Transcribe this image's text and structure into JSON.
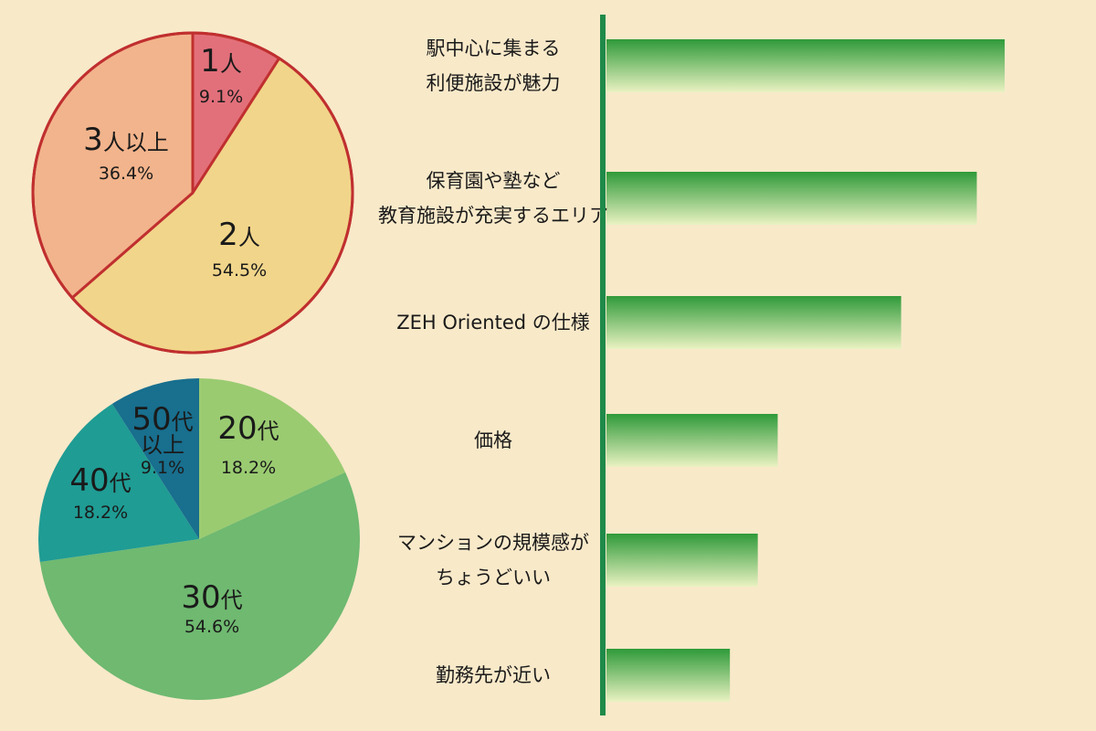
{
  "chart_data": [
    {
      "type": "pie",
      "slices": [
        {
          "number": "1",
          "unit": "人",
          "percent_label": "9.1%",
          "value": 9.1,
          "color": "#e2707a"
        },
        {
          "number": "2",
          "unit": "人",
          "percent_label": "54.5%",
          "value": 54.5,
          "color": "#f1d58a"
        },
        {
          "number": "3",
          "unit": "人以上",
          "percent_label": "36.4%",
          "value": 36.4,
          "color": "#f2b48c"
        }
      ],
      "border_color": "#c02f2f"
    },
    {
      "type": "pie",
      "slices": [
        {
          "number": "20",
          "unit": "代",
          "percent_label": "18.2%",
          "value": 18.2,
          "color": "#9acb71"
        },
        {
          "number": "30",
          "unit": "代",
          "percent_label": "54.6%",
          "value": 54.6,
          "color": "#6fb970"
        },
        {
          "number": "40",
          "unit": "代",
          "percent_label": "18.2%",
          "value": 18.2,
          "color": "#1f9c94"
        },
        {
          "number": "50",
          "unit": "代",
          "unit2": "以上",
          "percent_label": "9.1%",
          "value": 9.1,
          "color": "#186f8e"
        }
      ]
    },
    {
      "type": "bar",
      "orientation": "horizontal",
      "axis_color": "#1f8a4a",
      "bar_color_top": "#2f9a3a",
      "bar_color_bottom": "#eaf2c2",
      "categories": [
        [
          "駅中心に集まる",
          "利便施設が魅力"
        ],
        [
          "保育園や塾など",
          "教育施設が充実するエリア"
        ],
        [
          "ZEH Oriented の仕様"
        ],
        [
          "価格"
        ],
        [
          "マンションの規模感が",
          "ちょうどいい"
        ],
        [
          "勤務先が近い"
        ]
      ],
      "values": [
        100,
        93,
        74,
        43,
        38,
        31
      ]
    }
  ]
}
